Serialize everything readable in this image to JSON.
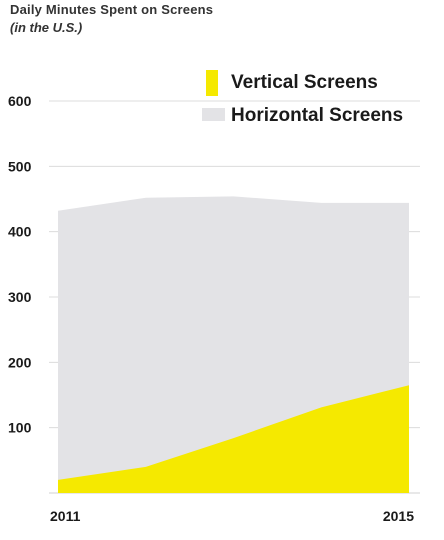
{
  "chart_data": {
    "type": "area",
    "title": "Daily Minutes Spent on Screens",
    "subtitle": "(in the U.S.)",
    "xlabel": "",
    "ylabel": "",
    "x": [
      2011,
      2012,
      2013,
      2014,
      2015
    ],
    "x_tick_labels": [
      "2011",
      "2015"
    ],
    "ylim": [
      0,
      600
    ],
    "y_ticks": [
      100,
      200,
      300,
      400,
      500,
      600
    ],
    "grid": true,
    "legend_position": "top-right",
    "series": [
      {
        "name": "Vertical Screens",
        "color": "#f5e900",
        "values": [
          20,
          40,
          84,
          131,
          165
        ]
      },
      {
        "name": "Horizontal Screens",
        "color": "#e3e3e6",
        "values": [
          432,
          452,
          454,
          444,
          444
        ]
      }
    ]
  }
}
